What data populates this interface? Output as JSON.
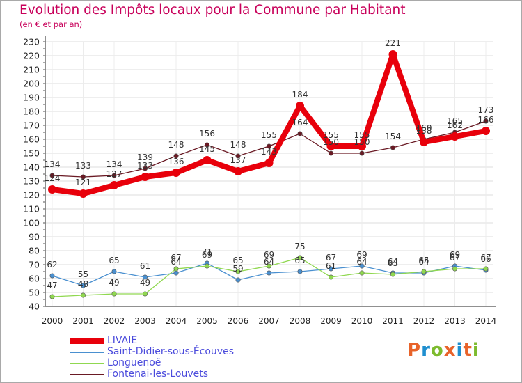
{
  "header": {
    "title": "Evolution des Impôts locaux pour la Commune par Habitant",
    "subtitle": "(en € et par an)"
  },
  "logo": {
    "text": "Proxiti",
    "colors": [
      "#e8632a",
      "#1f8fcf",
      "#7dbb2e",
      "#e8632a",
      "#1f8fcf",
      "#e8632a",
      "#7dbb2e"
    ]
  },
  "chart_data": {
    "type": "line",
    "title": "Evolution des Impôts locaux pour la Commune par Habitant",
    "subtitle": "(en € et par an)",
    "x": [
      "2000",
      "2001",
      "2002",
      "2003",
      "2004",
      "2005",
      "2006",
      "2007",
      "2008",
      "2009",
      "2010",
      "2011",
      "2012",
      "2013",
      "2014"
    ],
    "ylim": [
      40,
      230
    ],
    "yticks": [
      40,
      50,
      60,
      70,
      80,
      90,
      100,
      110,
      120,
      130,
      140,
      150,
      160,
      170,
      180,
      190,
      200,
      210,
      220,
      230
    ],
    "grid": true,
    "legend_position": "bottom-left",
    "series": [
      {
        "name": "LIVAIE",
        "color": "#e8000b",
        "values": [
          124,
          121,
          127,
          133,
          136,
          145,
          137,
          143,
          184,
          155,
          155,
          221,
          158,
          162,
          166
        ]
      },
      {
        "name": "Saint-Didier-sous-Écouves",
        "color": "#4a90d0",
        "values": [
          62,
          55,
          65,
          61,
          64,
          71,
          59,
          64,
          65,
          67,
          69,
          64,
          64,
          69,
          66
        ]
      },
      {
        "name": "Longuenoë",
        "color": "#90d850",
        "values": [
          47,
          48,
          49,
          49,
          67,
          69,
          65,
          69,
          75,
          61,
          64,
          63,
          65,
          67,
          67
        ]
      },
      {
        "name": "Fontenai-les-Louvets",
        "color": "#6a1a24",
        "values": [
          134,
          133,
          134,
          139,
          148,
          156,
          148,
          155,
          164,
          150,
          150,
          154,
          160,
          165,
          173
        ]
      }
    ]
  }
}
